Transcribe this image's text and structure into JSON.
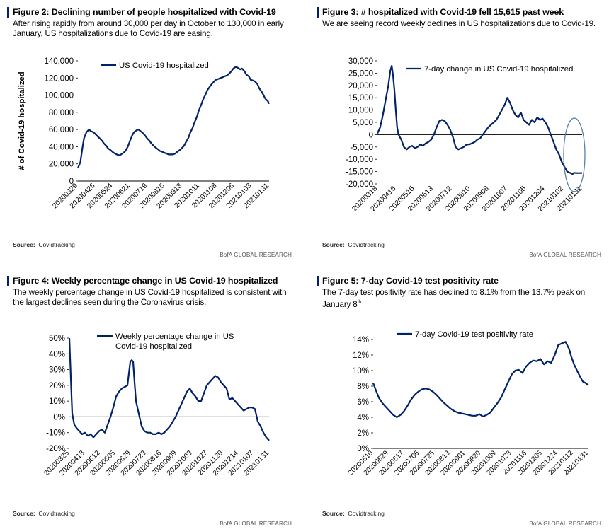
{
  "colors": {
    "series": "#012169",
    "axis": "#000000",
    "accent_bar": "#012169"
  },
  "source_label": "Source:",
  "source_name": "Covidtracking",
  "credit": "BofA GLOBAL RESEARCH",
  "chart_data": [
    {
      "type": "line",
      "title": "Figure 2: Declining number of people hospitalized with Covid-19",
      "subtitle": "After rising rapidly from around 30,000 per day in October to 130,000 in early January, US hospitalizations due to Covid-19 are easing.",
      "ylabel": "# of Covid-19 hospitalized",
      "xlabel": "",
      "legend": [
        "US Covid-19 hospitalized"
      ],
      "ylim": [
        0,
        140000
      ],
      "yticks": [
        0,
        20000,
        40000,
        60000,
        80000,
        100000,
        120000,
        140000
      ],
      "ytick_labels": [
        "0",
        "20,000",
        "40,000",
        "60,000",
        "80,000",
        "100,000",
        "120,000",
        "140,000"
      ],
      "xticks": [
        "20200329",
        "20200426",
        "20200524",
        "20200621",
        "20200719",
        "20200816",
        "20200913",
        "20201011",
        "20201108",
        "20201206",
        "20210103",
        "20210131"
      ],
      "series": [
        {
          "name": "US Covid-19 hospitalized",
          "x": [
            0,
            4,
            7,
            10,
            14,
            18,
            21,
            25,
            28,
            32,
            35,
            39,
            42,
            46,
            49,
            53,
            56,
            60,
            63,
            67,
            70,
            74,
            77,
            81,
            84,
            88,
            91,
            95,
            98,
            102,
            105,
            109,
            112,
            116,
            119,
            123,
            126,
            130,
            133,
            137,
            140,
            144,
            147,
            151,
            154,
            158,
            161,
            165,
            168,
            172,
            175,
            179,
            182,
            186,
            189,
            193,
            196,
            200,
            203,
            207,
            210,
            214,
            217,
            221,
            224,
            228,
            231,
            235,
            238,
            242,
            245,
            249,
            252,
            256,
            259,
            263,
            266,
            270,
            273,
            277,
            280,
            284,
            287,
            291,
            294,
            298,
            301,
            303,
            305,
            308,
            310
          ],
          "values": [
            15000,
            22000,
            37000,
            50000,
            57000,
            60000,
            58000,
            57000,
            55000,
            52000,
            50000,
            47000,
            44000,
            41000,
            38000,
            36000,
            34000,
            32000,
            31000,
            30000,
            31000,
            33000,
            35000,
            40000,
            46000,
            53000,
            57000,
            59000,
            60000,
            58000,
            56000,
            53000,
            50000,
            47000,
            44000,
            41000,
            39000,
            37000,
            35000,
            34000,
            33000,
            32000,
            31000,
            31000,
            31000,
            32000,
            34000,
            36000,
            38000,
            41000,
            45000,
            50000,
            56000,
            62000,
            68000,
            75000,
            82000,
            89000,
            95000,
            101000,
            106000,
            110000,
            113000,
            116000,
            118000,
            119000,
            120000,
            121000,
            122000,
            123000,
            125000,
            128000,
            131000,
            133000,
            132000,
            130000,
            131000,
            128000,
            124000,
            122000,
            118000,
            117000,
            116000,
            113000,
            108000,
            104000,
            100000,
            97000,
            95000,
            93000,
            90000
          ]
        }
      ]
    },
    {
      "type": "line",
      "title": "Figure 3: # hospitalized with Covid-19 fell 15,615 past week",
      "subtitle": "We are seeing record weekly declines in US hospitalizations due to Covid-19.",
      "xlabel": "",
      "ylabel": "",
      "legend": [
        "7-day change in US Covid-19 hospitalized"
      ],
      "ylim": [
        -20000,
        30000
      ],
      "yticks": [
        -20000,
        -15000,
        -10000,
        -5000,
        0,
        5000,
        10000,
        15000,
        20000,
        25000,
        30000
      ],
      "ytick_labels": [
        "-20,000",
        "-15,000",
        "-10,000",
        "-5,000",
        "0",
        "5,000",
        "10,000",
        "15,000",
        "20,000",
        "25,000",
        "30,000"
      ],
      "xticks": [
        "20200318",
        "20200416",
        "20200515",
        "20200613",
        "20200712",
        "20200810",
        "20200908",
        "20201007",
        "20201105",
        "20201204",
        "20210102",
        "20210131"
      ],
      "annotation": "ellipse highlighting recent record declines",
      "series": [
        {
          "name": "7-day change in US Covid-19 hospitalized",
          "x": [
            0,
            4,
            8,
            12,
            16,
            19,
            21,
            23,
            25,
            27,
            29,
            31,
            35,
            39,
            43,
            47,
            51,
            55,
            59,
            63,
            67,
            71,
            75,
            79,
            83,
            87,
            91,
            95,
            99,
            103,
            107,
            111,
            115,
            119,
            123,
            127,
            131,
            135,
            139,
            143,
            147,
            151,
            155,
            159,
            163,
            167,
            171,
            175,
            179,
            183,
            187,
            191,
            195,
            199,
            203,
            207,
            211,
            215,
            219,
            223,
            227,
            231,
            235,
            239,
            243,
            247,
            251,
            255,
            259,
            263,
            267,
            271,
            275,
            279,
            283,
            287,
            289,
            292,
            295,
            298,
            301
          ],
          "values": [
            500,
            3000,
            8000,
            14000,
            20000,
            26000,
            28000,
            24000,
            18000,
            10000,
            3000,
            0,
            -2000,
            -5000,
            -6000,
            -5000,
            -4500,
            -5500,
            -5000,
            -4000,
            -4500,
            -3500,
            -3000,
            -2000,
            0,
            3000,
            5500,
            6000,
            5500,
            4000,
            2000,
            -1000,
            -5000,
            -6000,
            -5500,
            -5000,
            -4000,
            -4000,
            -3500,
            -3000,
            -2000,
            -1500,
            0,
            1500,
            3000,
            4000,
            5000,
            6000,
            8000,
            10000,
            12000,
            15000,
            13000,
            10000,
            8000,
            7000,
            9000,
            6000,
            5000,
            4000,
            6000,
            5000,
            7000,
            6000,
            6500,
            5000,
            3000,
            0,
            -3000,
            -6000,
            -8000,
            -11000,
            -13000,
            -15000,
            -15500,
            -16000,
            -15500,
            -15615,
            -15615,
            -15615,
            -15615
          ]
        }
      ]
    },
    {
      "type": "line",
      "title": "Figure 4: Weekly percentage change in US Covid-19 hospitalized",
      "subtitle": "The weekly percentage change in US Covid-19 hospitalized is consistent with the largest declines seen during the Coronavirus crisis.",
      "xlabel": "",
      "ylabel": "",
      "legend": [
        "Weekly percentage change in US Covid-19 hospitalized"
      ],
      "ylim": [
        -20,
        50
      ],
      "yticks": [
        -20,
        -10,
        0,
        10,
        20,
        30,
        40,
        50
      ],
      "ytick_labels": [
        "-20%",
        "-10%",
        "0%",
        "10%",
        "20%",
        "30%",
        "40%",
        "50%"
      ],
      "xticks": [
        "20200325",
        "20200418",
        "20200512",
        "20200605",
        "20200629",
        "20200723",
        "20200816",
        "20200909",
        "20201003",
        "20201027",
        "20201120",
        "20201214",
        "20210107",
        "20210131"
      ],
      "series": [
        {
          "name": "Weekly percentage change in US Covid-19 hospitalized",
          "x": [
            0,
            2,
            4,
            7,
            10,
            14,
            18,
            22,
            26,
            30,
            34,
            38,
            42,
            46,
            50,
            54,
            58,
            62,
            66,
            70,
            74,
            78,
            82,
            86,
            88,
            90,
            92,
            94,
            98,
            102,
            106,
            110,
            114,
            118,
            122,
            126,
            130,
            134,
            138,
            142,
            146,
            150,
            154,
            158,
            162,
            166,
            170,
            174,
            178,
            182,
            186,
            190,
            194,
            198,
            202,
            206,
            210,
            214,
            218,
            222,
            226,
            230,
            234,
            238,
            242,
            246,
            250,
            254,
            258,
            262,
            266,
            270,
            274,
            278,
            282
          ],
          "values": [
            50,
            25,
            2,
            -5,
            -7,
            -9,
            -11,
            -10,
            -12,
            -11,
            -13,
            -11,
            -9,
            -8,
            -10,
            -5,
            0,
            6,
            13,
            16,
            18,
            19,
            20,
            35,
            36,
            35,
            22,
            10,
            2,
            -6,
            -9,
            -10,
            -10,
            -11,
            -11,
            -10,
            -11,
            -10,
            -8,
            -6,
            -3,
            0,
            4,
            8,
            12,
            16,
            18,
            15,
            13,
            10,
            10,
            15,
            20,
            22,
            24,
            26,
            25,
            22,
            20,
            18,
            11,
            12,
            10,
            8,
            6,
            4,
            5,
            6,
            6,
            5,
            -3,
            -6,
            -10,
            -13,
            -15
          ]
        }
      ]
    },
    {
      "type": "line",
      "title": "Figure 5: 7-day Covid-19 test positivity rate",
      "subtitle": "The 7-day test positivity rate has declined to 8.1% from the 13.7% peak on January 8",
      "subtitle_sup": "th",
      "xlabel": "",
      "ylabel": "",
      "legend": [
        "7-day Covid-19 test positivity rate"
      ],
      "ylim": [
        0,
        14
      ],
      "yticks": [
        0,
        2,
        4,
        6,
        8,
        10,
        12,
        14
      ],
      "ytick_labels": [
        "0%",
        "2%",
        "4%",
        "6%",
        "8%",
        "10%",
        "12%",
        "14%"
      ],
      "xticks": [
        "20200510",
        "20200529",
        "20200617",
        "20200706",
        "20200725",
        "20200813",
        "20200901",
        "20200920",
        "20201009",
        "20201028",
        "20201116",
        "20201205",
        "20201224",
        "20210112",
        "20210131"
      ],
      "series": [
        {
          "name": "7-day Covid-19 test positivity rate",
          "x": [
            0,
            4,
            8,
            13,
            18,
            23,
            28,
            33,
            38,
            43,
            48,
            53,
            58,
            63,
            68,
            73,
            78,
            83,
            88,
            93,
            98,
            103,
            108,
            113,
            118,
            123,
            128,
            133,
            138,
            143,
            148,
            153,
            158,
            163,
            168,
            173,
            178,
            183,
            188,
            193,
            198,
            203,
            208,
            213,
            218,
            223,
            228,
            233,
            238,
            243,
            248,
            253,
            258,
            263,
            268,
            273,
            276,
            280,
            284,
            288,
            292,
            296,
            300
          ],
          "values": [
            8.4,
            7.4,
            6.5,
            5.8,
            5.3,
            4.8,
            4.3,
            4.0,
            4.3,
            4.8,
            5.5,
            6.3,
            6.9,
            7.3,
            7.6,
            7.7,
            7.6,
            7.3,
            6.9,
            6.4,
            5.9,
            5.5,
            5.1,
            4.8,
            4.6,
            4.5,
            4.4,
            4.3,
            4.2,
            4.2,
            4.4,
            4.1,
            4.3,
            4.6,
            5.2,
            5.8,
            6.5,
            7.5,
            8.5,
            9.5,
            10.0,
            10.1,
            9.7,
            10.5,
            11.0,
            11.3,
            11.2,
            11.5,
            10.8,
            11.2,
            11.0,
            12.0,
            13.3,
            13.5,
            13.7,
            12.8,
            11.8,
            10.8,
            10.0,
            9.3,
            8.6,
            8.4,
            8.1
          ]
        }
      ]
    }
  ]
}
